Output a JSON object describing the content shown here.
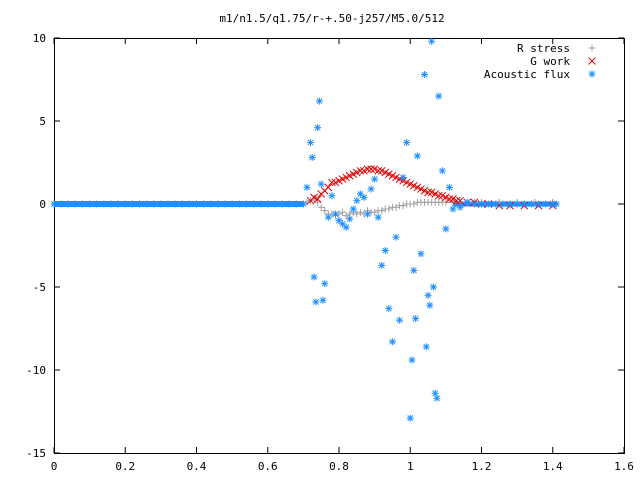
{
  "chart_data": {
    "type": "scatter",
    "title": "m1/n1.5/q1.75/r-+.50-j257/M5.0/512",
    "xlabel": "",
    "ylabel": "",
    "xlim": [
      0,
      1.6
    ],
    "ylim": [
      -15,
      10
    ],
    "x_ticks": [
      "0",
      "0.2",
      "0.4",
      "0.6",
      "0.8",
      "1",
      "1.2",
      "1.4",
      "1.6"
    ],
    "y_ticks": [
      "10",
      "5",
      "0",
      "-5",
      "-10",
      "-15"
    ],
    "legend_position": "top-right",
    "grid": false,
    "series": [
      {
        "name": "R stress",
        "marker": "+",
        "color": "#a0a0a0",
        "x": [
          0.71,
          0.72,
          0.73,
          0.74,
          0.75,
          0.76,
          0.77,
          0.78,
          0.79,
          0.8,
          0.81,
          0.82,
          0.83,
          0.84,
          0.85,
          0.86,
          0.87,
          0.88,
          0.89,
          0.9,
          0.91,
          0.92,
          0.93,
          0.94,
          0.95,
          0.96,
          0.97,
          0.98,
          0.99,
          1.0,
          1.01,
          1.02,
          1.03,
          1.04,
          1.05,
          1.06,
          1.07,
          1.08,
          1.09,
          1.1,
          1.12,
          1.14,
          1.16,
          1.18,
          1.2,
          1.25,
          1.3,
          1.35,
          1.4
        ],
        "y": [
          0.1,
          0.2,
          0.3,
          0.1,
          -0.2,
          -0.4,
          -0.6,
          -0.6,
          -0.7,
          -0.6,
          -0.5,
          -0.7,
          -0.6,
          -0.5,
          -0.6,
          -0.5,
          -0.6,
          -0.4,
          -0.5,
          -0.5,
          -0.4,
          -0.4,
          -0.3,
          -0.3,
          -0.2,
          -0.2,
          -0.1,
          -0.1,
          0.0,
          0.0,
          0.0,
          0.1,
          0.1,
          0.1,
          0.1,
          0.1,
          0.1,
          0.1,
          0.1,
          0.1,
          0.1,
          0.1,
          0.1,
          0.1,
          0.1,
          0.1,
          0.1,
          0.1,
          0.1
        ]
      },
      {
        "name": "G work",
        "marker": "x",
        "color": "#e00000",
        "x": [
          0.72,
          0.73,
          0.74,
          0.75,
          0.76,
          0.77,
          0.78,
          0.79,
          0.8,
          0.81,
          0.82,
          0.83,
          0.84,
          0.85,
          0.86,
          0.87,
          0.88,
          0.89,
          0.9,
          0.91,
          0.92,
          0.93,
          0.94,
          0.95,
          0.96,
          0.97,
          0.98,
          0.99,
          1.0,
          1.01,
          1.02,
          1.03,
          1.04,
          1.05,
          1.06,
          1.07,
          1.08,
          1.09,
          1.1,
          1.11,
          1.12,
          1.13,
          1.14,
          1.16,
          1.18,
          1.2,
          1.22,
          1.25,
          1.28,
          1.32,
          1.36,
          1.4
        ],
        "y": [
          0.2,
          0.4,
          0.3,
          0.6,
          0.8,
          1.0,
          1.3,
          1.3,
          1.4,
          1.5,
          1.6,
          1.7,
          1.8,
          1.9,
          2.0,
          2.0,
          2.1,
          2.1,
          2.1,
          2.0,
          2.0,
          1.9,
          1.8,
          1.7,
          1.6,
          1.5,
          1.4,
          1.3,
          1.2,
          1.1,
          1.0,
          0.9,
          0.8,
          0.7,
          0.7,
          0.6,
          0.5,
          0.5,
          0.4,
          0.3,
          0.3,
          0.2,
          0.2,
          0.1,
          0.1,
          0.0,
          0.0,
          -0.1,
          -0.1,
          -0.1,
          -0.1,
          -0.1
        ]
      },
      {
        "name": "Acoustic flux",
        "marker": "*",
        "color": "#1f8fff",
        "x": [
          0.0,
          0.02,
          0.04,
          0.06,
          0.08,
          0.1,
          0.12,
          0.14,
          0.16,
          0.18,
          0.2,
          0.22,
          0.24,
          0.26,
          0.28,
          0.3,
          0.32,
          0.34,
          0.36,
          0.38,
          0.4,
          0.42,
          0.44,
          0.46,
          0.48,
          0.5,
          0.52,
          0.54,
          0.56,
          0.58,
          0.6,
          0.62,
          0.64,
          0.66,
          0.68,
          0.7,
          0.71,
          0.72,
          0.725,
          0.73,
          0.735,
          0.74,
          0.745,
          0.75,
          0.755,
          0.76,
          0.77,
          0.78,
          0.79,
          0.8,
          0.81,
          0.82,
          0.83,
          0.84,
          0.85,
          0.86,
          0.87,
          0.88,
          0.89,
          0.9,
          0.91,
          0.92,
          0.93,
          0.94,
          0.95,
          0.96,
          0.97,
          0.98,
          0.99,
          1.0,
          1.005,
          1.01,
          1.015,
          1.02,
          1.03,
          1.04,
          1.045,
          1.05,
          1.055,
          1.06,
          1.065,
          1.07,
          1.075,
          1.08,
          1.09,
          1.1,
          1.11,
          1.12,
          1.14,
          1.16,
          1.18,
          1.2,
          1.22,
          1.24,
          1.26,
          1.28,
          1.3,
          1.32,
          1.34,
          1.36,
          1.38,
          1.4,
          1.41
        ],
        "y": [
          0,
          0,
          0,
          0,
          0,
          0,
          0,
          0,
          0,
          0,
          0,
          0,
          0,
          0,
          0,
          0,
          0,
          0,
          0,
          0,
          0,
          0,
          0,
          0,
          0,
          0,
          0,
          0,
          0,
          0,
          0,
          0,
          0,
          0,
          0,
          0,
          1.0,
          3.7,
          2.8,
          -4.4,
          -5.9,
          4.6,
          6.2,
          1.2,
          -5.8,
          -4.8,
          -0.8,
          0.5,
          -0.6,
          -1.0,
          -1.2,
          -1.4,
          -0.9,
          -0.3,
          0.2,
          0.6,
          0.4,
          -0.6,
          0.9,
          1.5,
          -0.8,
          -3.7,
          -2.8,
          -6.3,
          -8.3,
          -2.0,
          -7.0,
          1.6,
          3.7,
          -12.9,
          -9.4,
          -4.0,
          -6.9,
          2.9,
          -3.0,
          7.8,
          -8.6,
          -5.5,
          -6.1,
          9.8,
          -5.0,
          -11.4,
          -11.7,
          6.5,
          2.0,
          -1.5,
          1.0,
          -0.3,
          -0.2,
          0.1,
          0.0,
          0.0,
          0.0,
          0.0,
          0.0,
          0.0,
          0.0,
          0.0,
          0.0,
          0.0,
          0.0,
          0.0,
          0.0
        ]
      }
    ]
  }
}
